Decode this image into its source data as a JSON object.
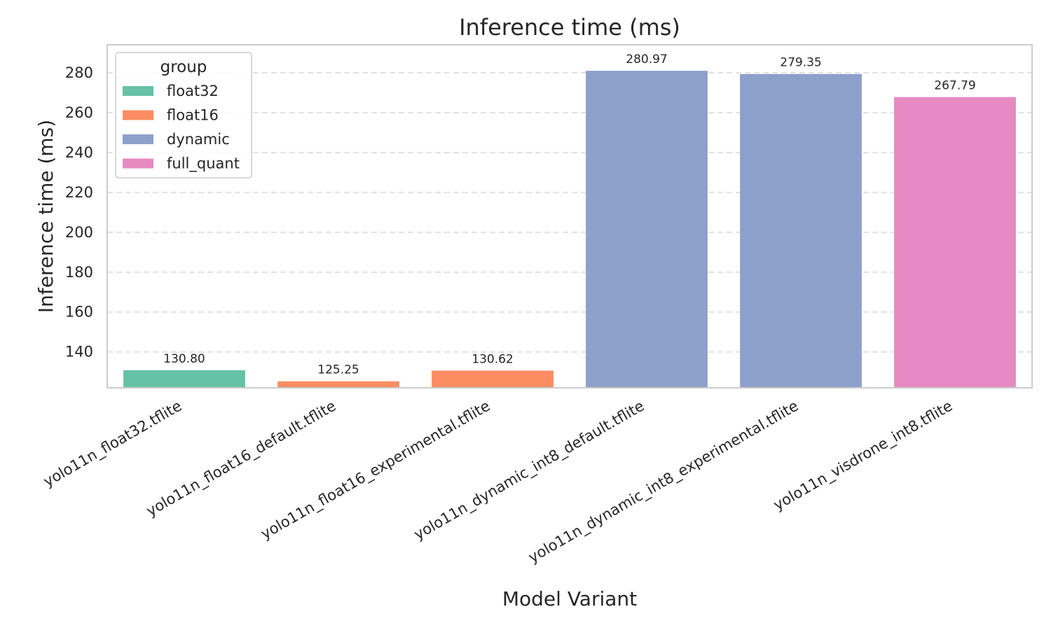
{
  "chart_data": {
    "type": "bar",
    "title": "Inference time (ms)",
    "xlabel": "Model Variant",
    "ylabel": "Inference time (ms)",
    "ylim": [
      122,
      294
    ],
    "yticks": [
      140,
      160,
      180,
      200,
      220,
      240,
      260,
      280
    ],
    "grid": true,
    "legend_placement": "top-left",
    "legend_title": "group",
    "groups": [
      {
        "name": "float32",
        "color": "#66c2a5"
      },
      {
        "name": "float16",
        "color": "#fc8d62"
      },
      {
        "name": "dynamic",
        "color": "#8da0cb"
      },
      {
        "name": "full_quant",
        "color": "#e78ac3"
      }
    ],
    "categories": [
      "yolo11n_float32.tflite",
      "yolo11n_float16_default.tflite",
      "yolo11n_float16_experimental.tflite",
      "yolo11n_dynamic_int8_default.tflite",
      "yolo11n_dynamic_int8_experimental.tflite",
      "yolo11n_visdrone_int8.tflite"
    ],
    "values": [
      130.8,
      125.25,
      130.62,
      280.97,
      279.35,
      267.79
    ],
    "value_labels": [
      "130.80",
      "125.25",
      "130.62",
      "280.97",
      "279.35",
      "267.79"
    ],
    "bar_groups": [
      "float32",
      "float16",
      "float16",
      "dynamic",
      "dynamic",
      "full_quant"
    ]
  }
}
